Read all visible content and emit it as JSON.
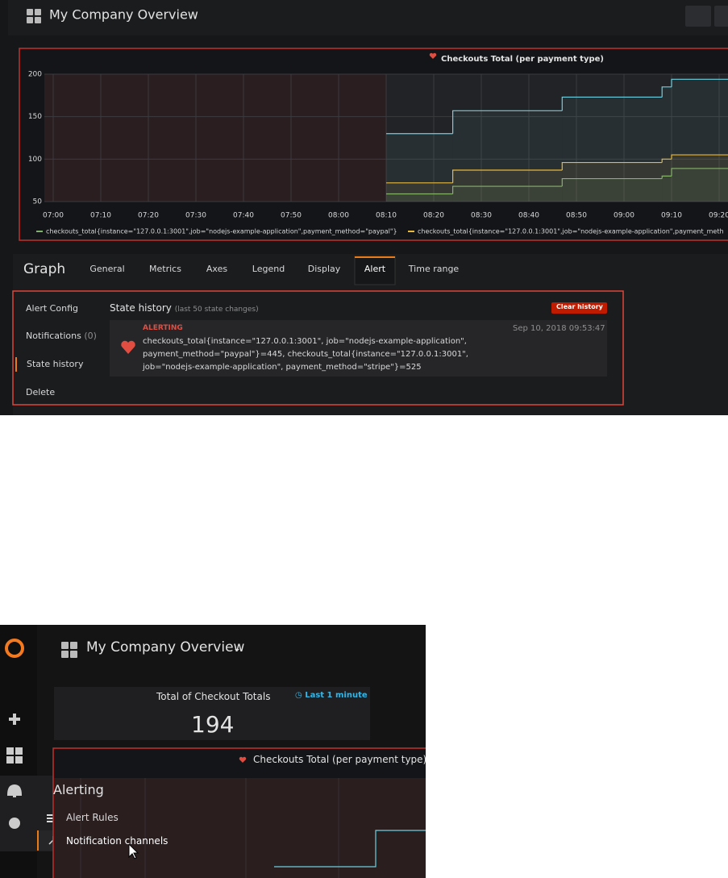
{
  "header": {
    "title": "My Company Overview"
  },
  "chart_data": {
    "type": "line",
    "title": "Checkouts Total (per payment type)",
    "x": [
      "08:10",
      "08:24",
      "08:47",
      "09:08",
      "09:10"
    ],
    "series": [
      {
        "color": "#6ed0e0",
        "values": [
          130,
          157,
          173,
          185,
          194
        ]
      },
      {
        "name": "checkouts_total{instance=\"127.0.0.1:3001\",job=\"nodejs-example-application\",payment_method=\"paypal\"}",
        "color": "#7eb26d",
        "values": [
          59,
          68,
          77,
          80,
          89
        ]
      },
      {
        "name": "checkouts_total{instance=\"127.0.0.1:3001\",job=\"nodejs-example-application\",payment_meth",
        "color": "#eab839",
        "values": [
          72,
          87,
          96,
          100,
          105
        ]
      }
    ],
    "xlim": [
      "07:00",
      "09:20"
    ],
    "xticks": [
      "07:00",
      "07:10",
      "07:20",
      "07:30",
      "07:40",
      "07:50",
      "08:00",
      "08:10",
      "08:20",
      "08:30",
      "08:40",
      "08:50",
      "09:00",
      "09:10",
      "09:20"
    ],
    "ylim": [
      50,
      200
    ],
    "yticks": [
      50,
      100,
      150,
      200
    ],
    "grid": true
  },
  "editor": {
    "title": "Graph",
    "tabs": [
      "General",
      "Metrics",
      "Axes",
      "Legend",
      "Display",
      "Alert",
      "Time range"
    ],
    "active_tab": "Alert",
    "alert_menu": [
      "Alert Config",
      "Notifications",
      "State history",
      "Delete"
    ],
    "notifications_count": "(0)",
    "state_history": {
      "title": "State history",
      "subtitle": "(last 50 state changes)",
      "button": "Clear history",
      "entry": {
        "state": "ALERTING",
        "time": "Sep 10, 2018 09:53:47",
        "text": "checkouts_total{instance=\"127.0.0.1:3001\", job=\"nodejs-example-application\", payment_method=\"paypal\"}=445, checkouts_total{instance=\"127.0.0.1:3001\", job=\"nodejs-example-application\", payment_method=\"stripe\"}=525"
      }
    }
  },
  "second_screenshot": {
    "title": "My Company Overview",
    "stat_title": "Total of Checkout Totals",
    "stat_range": "Last 1 minute",
    "stat_value": "194",
    "panel_title": "Checkouts Total (per payment type)",
    "menu_title": "Alerting",
    "menu_items": [
      "Alert Rules",
      "Notification channels"
    ]
  }
}
